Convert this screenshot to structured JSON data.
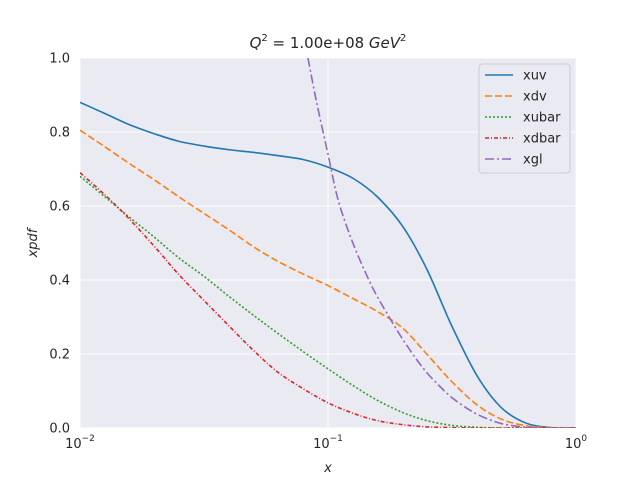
{
  "chart_data": {
    "type": "line",
    "title": {
      "prefix": "Q",
      "prefix_sup": "2",
      "value": " = 1.00e+08 ",
      "unit": "GeV",
      "unit_sup": "2"
    },
    "xlabel": "x",
    "ylabel": "xpdf",
    "xscale": "log",
    "xlim": [
      0.01,
      1.0
    ],
    "ylim": [
      0.0,
      1.0
    ],
    "grid": true,
    "legend_position": "top-right",
    "x_ticks": [
      {
        "value": 0.01,
        "base": "10",
        "exp": "−2"
      },
      {
        "value": 0.1,
        "base": "10",
        "exp": "−1"
      },
      {
        "value": 1.0,
        "base": "10",
        "exp": "0"
      }
    ],
    "y_ticks": [
      {
        "value": 0.0,
        "label": "0.0"
      },
      {
        "value": 0.2,
        "label": "0.2"
      },
      {
        "value": 0.4,
        "label": "0.4"
      },
      {
        "value": 0.6,
        "label": "0.6"
      },
      {
        "value": 0.8,
        "label": "0.8"
      },
      {
        "value": 1.0,
        "label": "1.0"
      }
    ],
    "series": [
      {
        "name": "xuv",
        "color": "#1f77b4",
        "dash": "",
        "x": [
          0.01,
          0.0126,
          0.0158,
          0.02,
          0.025,
          0.0316,
          0.04,
          0.05,
          0.063,
          0.08,
          0.1,
          0.126,
          0.158,
          0.2,
          0.25,
          0.316,
          0.4,
          0.5,
          0.63,
          0.8,
          1.0
        ],
        "y": [
          0.88,
          0.85,
          0.82,
          0.795,
          0.775,
          0.762,
          0.752,
          0.745,
          0.736,
          0.725,
          0.705,
          0.675,
          0.625,
          0.545,
          0.43,
          0.275,
          0.14,
          0.055,
          0.013,
          0.001,
          0.0
        ]
      },
      {
        "name": "xdv",
        "color": "#ff7f0e",
        "dash": "7,3",
        "x": [
          0.01,
          0.0126,
          0.0158,
          0.02,
          0.025,
          0.0316,
          0.04,
          0.05,
          0.063,
          0.08,
          0.1,
          0.126,
          0.158,
          0.2,
          0.25,
          0.316,
          0.4,
          0.5,
          0.63,
          0.8,
          1.0
        ],
        "y": [
          0.805,
          0.76,
          0.715,
          0.67,
          0.625,
          0.58,
          0.535,
          0.49,
          0.45,
          0.415,
          0.385,
          0.35,
          0.315,
          0.27,
          0.2,
          0.125,
          0.062,
          0.024,
          0.006,
          0.001,
          0.0
        ]
      },
      {
        "name": "xubar",
        "color": "#2ca02c",
        "dash": "2,2",
        "x": [
          0.01,
          0.0126,
          0.0158,
          0.02,
          0.025,
          0.0316,
          0.04,
          0.05,
          0.063,
          0.08,
          0.1,
          0.126,
          0.158,
          0.2,
          0.25,
          0.316,
          0.4,
          0.5,
          0.63,
          0.8,
          1.0
        ],
        "y": [
          0.68,
          0.625,
          0.57,
          0.515,
          0.46,
          0.41,
          0.355,
          0.305,
          0.255,
          0.205,
          0.16,
          0.115,
          0.075,
          0.042,
          0.02,
          0.007,
          0.002,
          0.0,
          0.0,
          0.0,
          0.0
        ]
      },
      {
        "name": "xdbar",
        "color": "#d62728",
        "dash": "4,2,1,2",
        "x": [
          0.01,
          0.0126,
          0.0158,
          0.02,
          0.025,
          0.0316,
          0.04,
          0.05,
          0.063,
          0.08,
          0.1,
          0.126,
          0.158,
          0.2,
          0.25,
          0.316,
          0.4,
          0.5,
          0.63,
          0.8,
          1.0
        ],
        "y": [
          0.69,
          0.63,
          0.565,
          0.49,
          0.415,
          0.345,
          0.275,
          0.21,
          0.15,
          0.105,
          0.068,
          0.04,
          0.02,
          0.009,
          0.003,
          0.001,
          0.0,
          0.0,
          0.0,
          0.0,
          0.0
        ]
      },
      {
        "name": "xgl",
        "color": "#9467bd",
        "dash": "9,3,2,3",
        "x": [
          0.083,
          0.09,
          0.1,
          0.11,
          0.126,
          0.145,
          0.158,
          0.18,
          0.2,
          0.225,
          0.25,
          0.28,
          0.316,
          0.36,
          0.4,
          0.45,
          0.5,
          0.56,
          0.63,
          0.7,
          0.8,
          1.0
        ],
        "y": [
          1.0,
          0.88,
          0.74,
          0.615,
          0.5,
          0.405,
          0.355,
          0.29,
          0.24,
          0.19,
          0.15,
          0.115,
          0.082,
          0.055,
          0.037,
          0.022,
          0.012,
          0.006,
          0.002,
          0.001,
          0.0,
          0.0
        ]
      }
    ]
  }
}
